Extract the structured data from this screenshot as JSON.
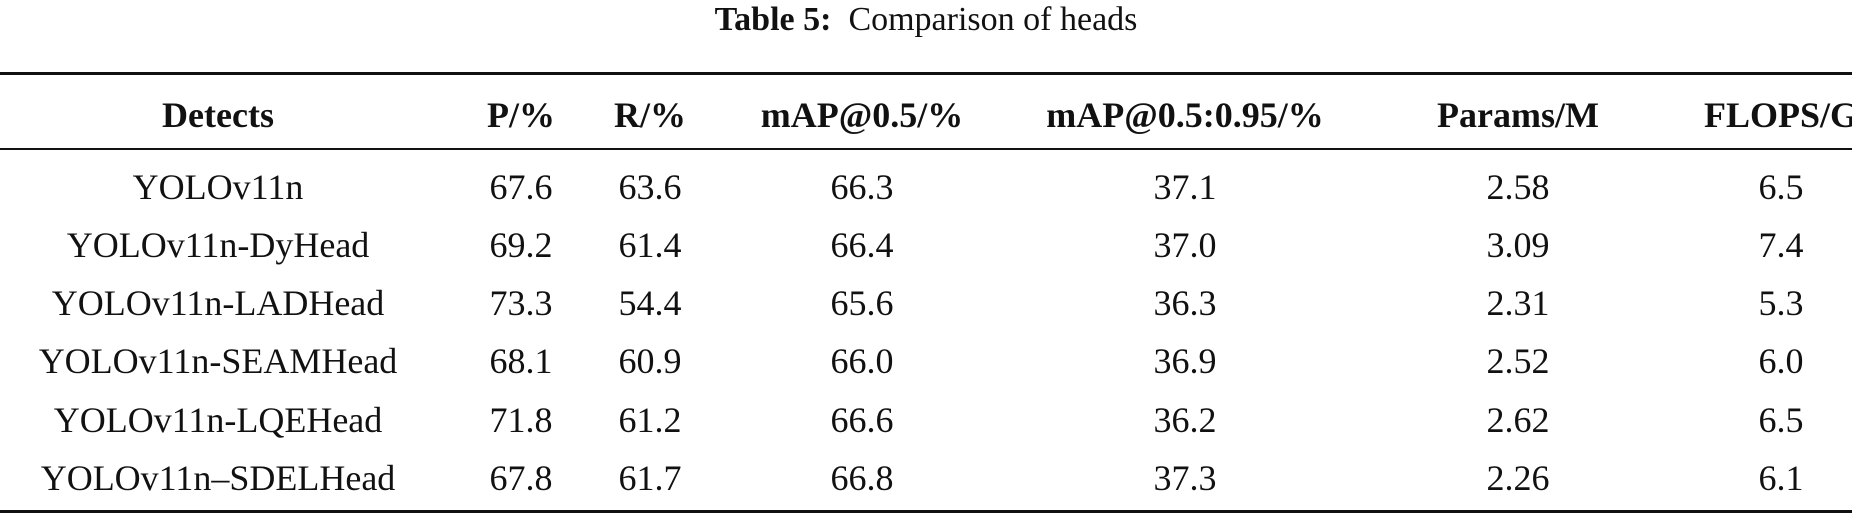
{
  "caption": {
    "label": "Table 5:",
    "text": "Comparison of heads"
  },
  "table": {
    "header": [
      "Detects",
      "P/%",
      "R/%",
      "mAP@0.5/%",
      "mAP@0.5:0.95/%",
      "Params/M",
      "FLOPS/G"
    ],
    "rows": [
      [
        "YOLOv11n",
        "67.6",
        "63.6",
        "66.3",
        "37.1",
        "2.58",
        "6.5"
      ],
      [
        "YOLOv11n-DyHead",
        "69.2",
        "61.4",
        "66.4",
        "37.0",
        "3.09",
        "7.4"
      ],
      [
        "YOLOv11n-LADHead",
        "73.3",
        "54.4",
        "65.6",
        "36.3",
        "2.31",
        "5.3"
      ],
      [
        "YOLOv11n-SEAMHead",
        "68.1",
        "60.9",
        "66.0",
        "36.9",
        "2.52",
        "6.0"
      ],
      [
        "YOLOv11n-LQEHead",
        "71.8",
        "61.2",
        "66.6",
        "36.2",
        "2.62",
        "6.5"
      ],
      [
        "YOLOv11n–SDELHead",
        "67.8",
        "61.7",
        "66.8",
        "37.3",
        "2.26",
        "6.1"
      ]
    ]
  }
}
